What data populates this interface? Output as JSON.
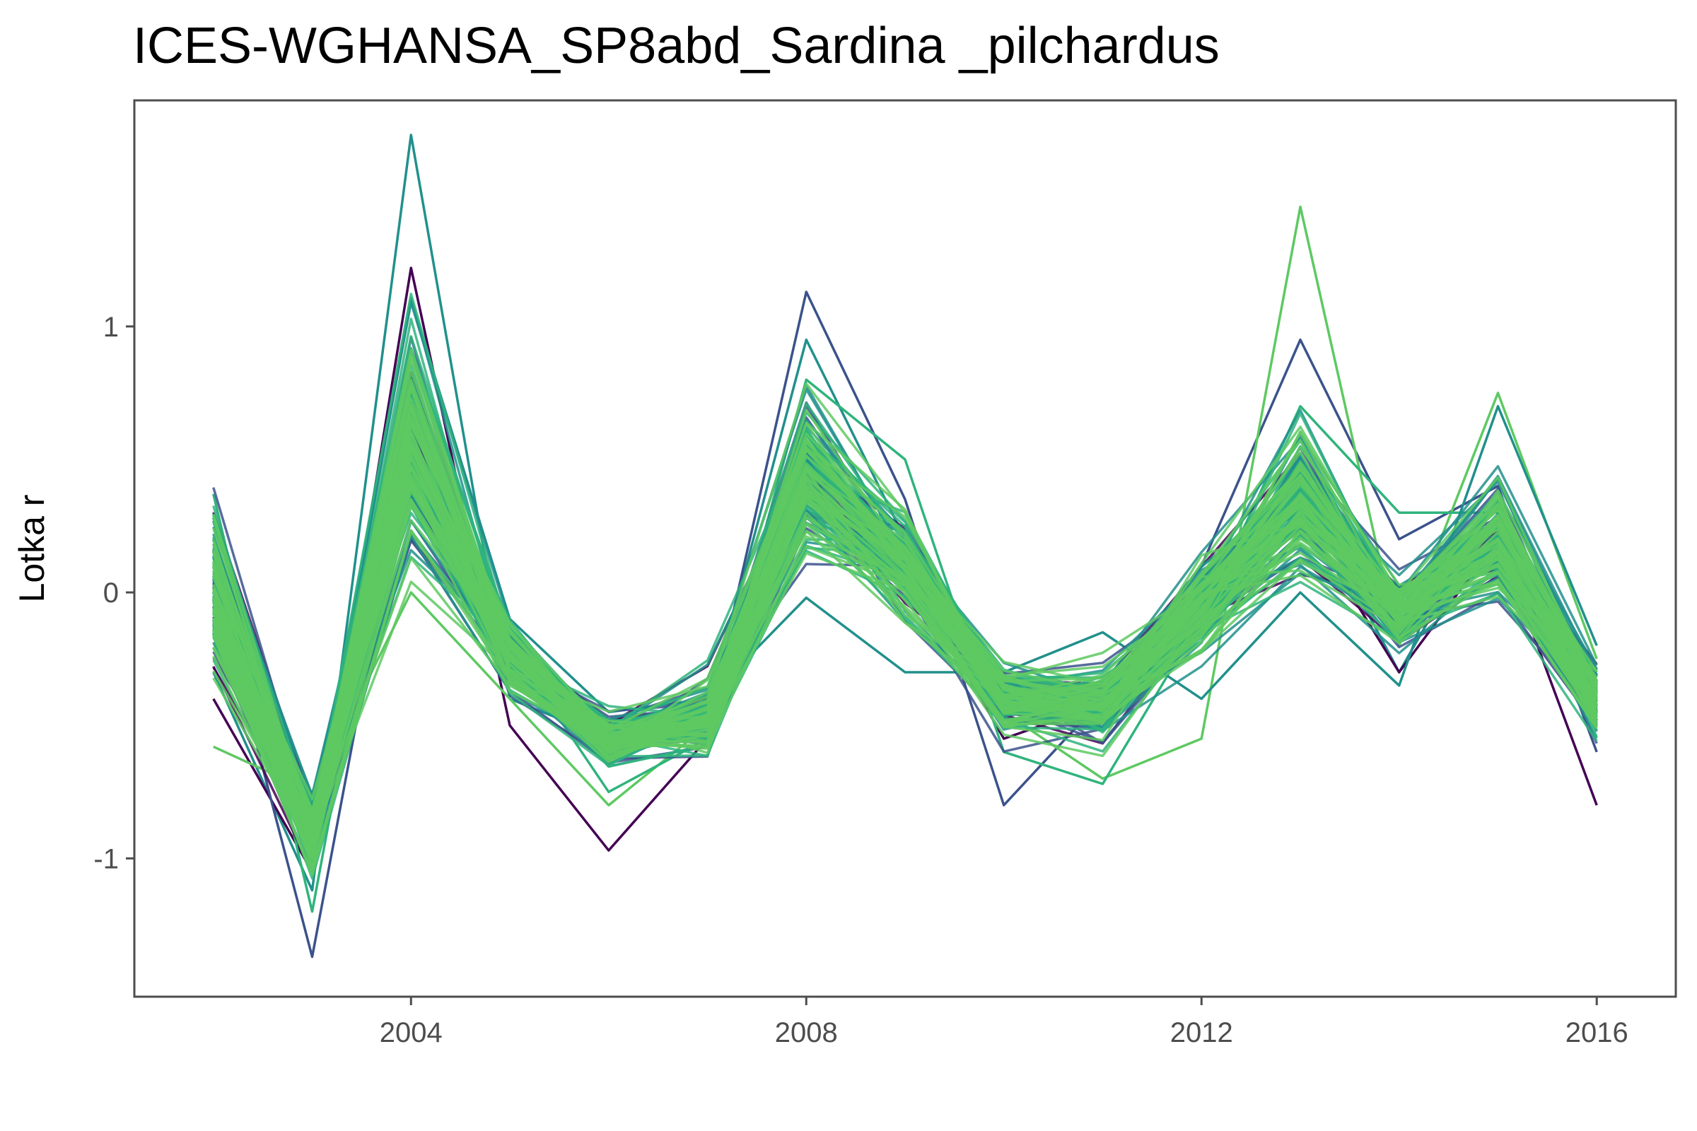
{
  "chart_data": {
    "type": "line",
    "title": "ICES-WGHANSA_SP8abd_Sardina _pilchardus",
    "xlabel": "",
    "ylabel": "Lotka r",
    "x": [
      2002,
      2003,
      2004,
      2005,
      2006,
      2007,
      2008,
      2009,
      2010,
      2011,
      2012,
      2013,
      2014,
      2015,
      2016
    ],
    "xlim": [
      2001.2,
      2016.8
    ],
    "ylim": [
      -1.52,
      1.85
    ],
    "x_ticks": [
      2004,
      2008,
      2012,
      2016
    ],
    "x_tick_labels": [
      "2004",
      "2008",
      "2012",
      "2016"
    ],
    "y_ticks": [
      -1,
      0,
      1
    ],
    "y_tick_labels": [
      "-1",
      "0",
      "1"
    ],
    "grid": false,
    "legend": "none",
    "color_scale": [
      "#440154",
      "#3b528b",
      "#21908c",
      "#2fb47c",
      "#5ec962"
    ],
    "series_count": 150,
    "median": [
      0.0,
      -0.92,
      0.55,
      -0.25,
      -0.55,
      -0.47,
      0.45,
      0.1,
      -0.4,
      -0.42,
      -0.05,
      0.35,
      -0.08,
      0.2,
      -0.4
    ],
    "spread": [
      0.22,
      0.1,
      0.28,
      0.09,
      0.07,
      0.09,
      0.2,
      0.13,
      0.08,
      0.09,
      0.12,
      0.2,
      0.09,
      0.14,
      0.1
    ],
    "extreme_series": [
      {
        "values": [
          -0.3,
          -1.12,
          1.72,
          -0.4,
          -0.55,
          -0.45,
          0.95,
          0.2,
          -0.5,
          -0.4,
          0.0,
          0.4,
          -0.3,
          0.35,
          -0.5
        ],
        "color": "#21908c"
      },
      {
        "values": [
          -0.4,
          -1.05,
          1.22,
          -0.5,
          -0.97,
          -0.55,
          0.6,
          0.1,
          -0.55,
          -0.42,
          -0.05,
          0.3,
          -0.3,
          0.2,
          -0.8
        ],
        "color": "#440154"
      },
      {
        "values": [
          0.05,
          -1.37,
          0.6,
          -0.3,
          -0.55,
          -0.5,
          1.13,
          0.35,
          -0.8,
          -0.4,
          0.1,
          0.95,
          0.2,
          0.4,
          -0.6
        ],
        "color": "#3b528b"
      },
      {
        "values": [
          -0.58,
          -0.75,
          0.0,
          -0.4,
          -0.8,
          -0.5,
          0.3,
          0.05,
          -0.45,
          -0.7,
          -0.55,
          1.45,
          -0.2,
          0.75,
          -0.25
        ],
        "color": "#5ec962"
      },
      {
        "values": [
          0.37,
          -1.2,
          0.8,
          -0.2,
          -0.75,
          -0.55,
          0.8,
          0.5,
          -0.6,
          -0.72,
          -0.1,
          0.7,
          0.3,
          0.3,
          -0.3
        ],
        "color": "#2fb47c"
      },
      {
        "values": [
          0.2,
          -0.95,
          1.1,
          -0.1,
          -0.45,
          -0.4,
          -0.02,
          -0.3,
          -0.3,
          -0.15,
          -0.4,
          0.0,
          -0.35,
          0.7,
          -0.2
        ],
        "color": "#21908c"
      }
    ]
  }
}
